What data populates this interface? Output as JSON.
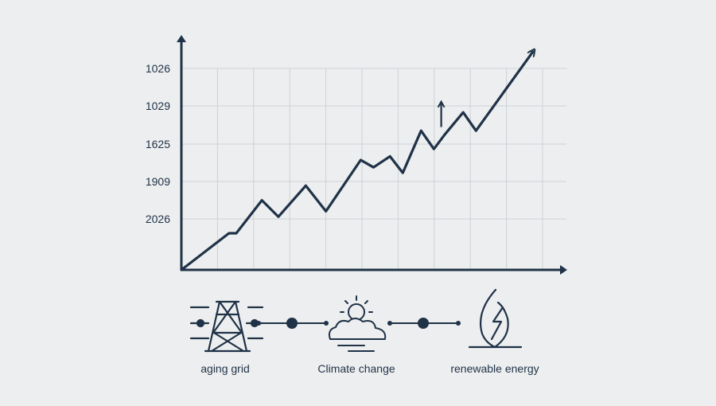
{
  "chart_data": {
    "type": "line",
    "y_tick_labels": [
      "1026",
      "1029",
      "1625",
      "1909",
      "2026"
    ],
    "grid": true,
    "series": [
      {
        "points": [
          [
            0.0,
            0.0
          ],
          [
            1.3,
            1.0
          ],
          [
            1.5,
            1.0
          ],
          [
            2.2,
            1.9
          ],
          [
            2.65,
            1.45
          ],
          [
            3.4,
            2.3
          ],
          [
            3.95,
            1.6
          ],
          [
            4.9,
            3.0
          ],
          [
            5.25,
            2.8
          ],
          [
            5.7,
            3.1
          ],
          [
            6.05,
            2.65
          ],
          [
            6.55,
            3.8
          ],
          [
            6.9,
            3.3
          ],
          [
            7.2,
            3.7
          ],
          [
            7.7,
            4.3
          ],
          [
            8.05,
            3.8
          ],
          [
            9.6,
            5.95
          ]
        ],
        "color": "#1f3247"
      }
    ],
    "annotations": [
      {
        "type": "small-up-arrow",
        "x": 7.1,
        "y_from": 3.9,
        "y_to": 4.55
      }
    ]
  },
  "flow": {
    "items": [
      {
        "icon": "transmission-tower-icon",
        "label": "aging grid"
      },
      {
        "icon": "sun-behind-cloud-icon",
        "label": "Climate change"
      },
      {
        "icon": "lightning-leaf-icon",
        "label": "renewable energy"
      }
    ]
  },
  "colors": {
    "background": "#edeeef",
    "ink": "#1f3247",
    "grid": "#cdd2d8"
  }
}
